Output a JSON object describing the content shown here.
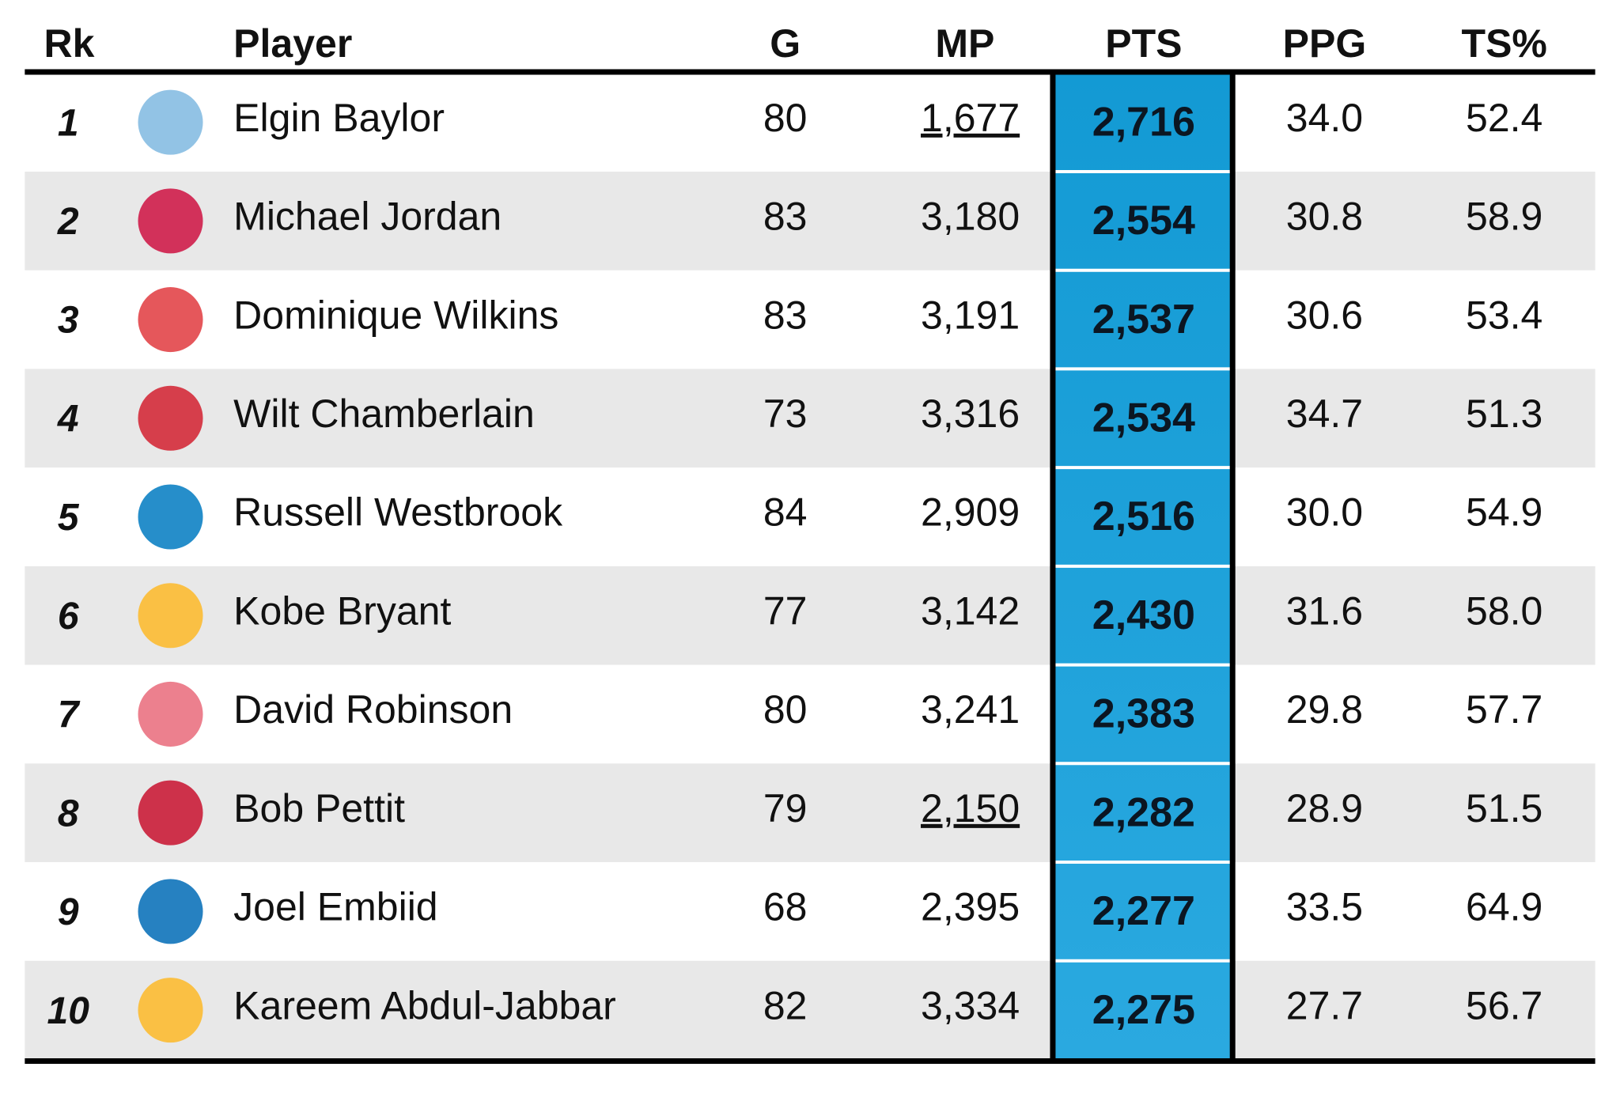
{
  "table": {
    "columns": [
      "Rk",
      "Player",
      "G",
      "MP",
      "PTS",
      "PPG",
      "TS%"
    ],
    "rows": [
      {
        "rank": "1",
        "player": "Elgin Baylor",
        "g": "80",
        "mp": "1,677",
        "pts": "2,716",
        "ppg": "34.0",
        "ts": "52.4",
        "mp_underline": true,
        "logo_color": "#7fb8e0"
      },
      {
        "rank": "2",
        "player": "Michael Jordan",
        "g": "83",
        "mp": "3,180",
        "pts": "2,554",
        "ppg": "30.8",
        "ts": "58.9",
        "mp_underline": false,
        "logo_color": "#ce1141"
      },
      {
        "rank": "3",
        "player": "Dominique Wilkins",
        "g": "83",
        "mp": "3,191",
        "pts": "2,537",
        "ppg": "30.6",
        "ts": "53.4",
        "mp_underline": false,
        "logo_color": "#e03a3e"
      },
      {
        "rank": "4",
        "player": "Wilt Chamberlain",
        "g": "73",
        "mp": "3,316",
        "pts": "2,534",
        "ppg": "34.7",
        "ts": "51.3",
        "mp_underline": false,
        "logo_color": "#d2202f"
      },
      {
        "rank": "5",
        "player": "Russell Westbrook",
        "g": "84",
        "mp": "2,909",
        "pts": "2,516",
        "ppg": "30.0",
        "ts": "54.9",
        "mp_underline": false,
        "logo_color": "#007ac1"
      },
      {
        "rank": "6",
        "player": "Kobe Bryant",
        "g": "77",
        "mp": "3,142",
        "pts": "2,430",
        "ppg": "31.6",
        "ts": "58.0",
        "mp_underline": false,
        "logo_color": "#fdb927"
      },
      {
        "rank": "7",
        "player": "David Robinson",
        "g": "80",
        "mp": "3,241",
        "pts": "2,383",
        "ppg": "29.8",
        "ts": "57.7",
        "mp_underline": false,
        "logo_color": "#e96a7a"
      },
      {
        "rank": "8",
        "player": "Bob Pettit",
        "g": "79",
        "mp": "2,150",
        "pts": "2,282",
        "ppg": "28.9",
        "ts": "51.5",
        "mp_underline": true,
        "logo_color": "#c8102e"
      },
      {
        "rank": "9",
        "player": "Joel Embiid",
        "g": "68",
        "mp": "2,395",
        "pts": "2,277",
        "ppg": "33.5",
        "ts": "64.9",
        "mp_underline": false,
        "logo_color": "#006bb6"
      },
      {
        "rank": "10",
        "player": "Kareem Abdul-Jabbar",
        "g": "82",
        "mp": "3,334",
        "pts": "2,275",
        "ppg": "27.7",
        "ts": "56.7",
        "mp_underline": false,
        "logo_color": "#fdb927"
      }
    ]
  }
}
